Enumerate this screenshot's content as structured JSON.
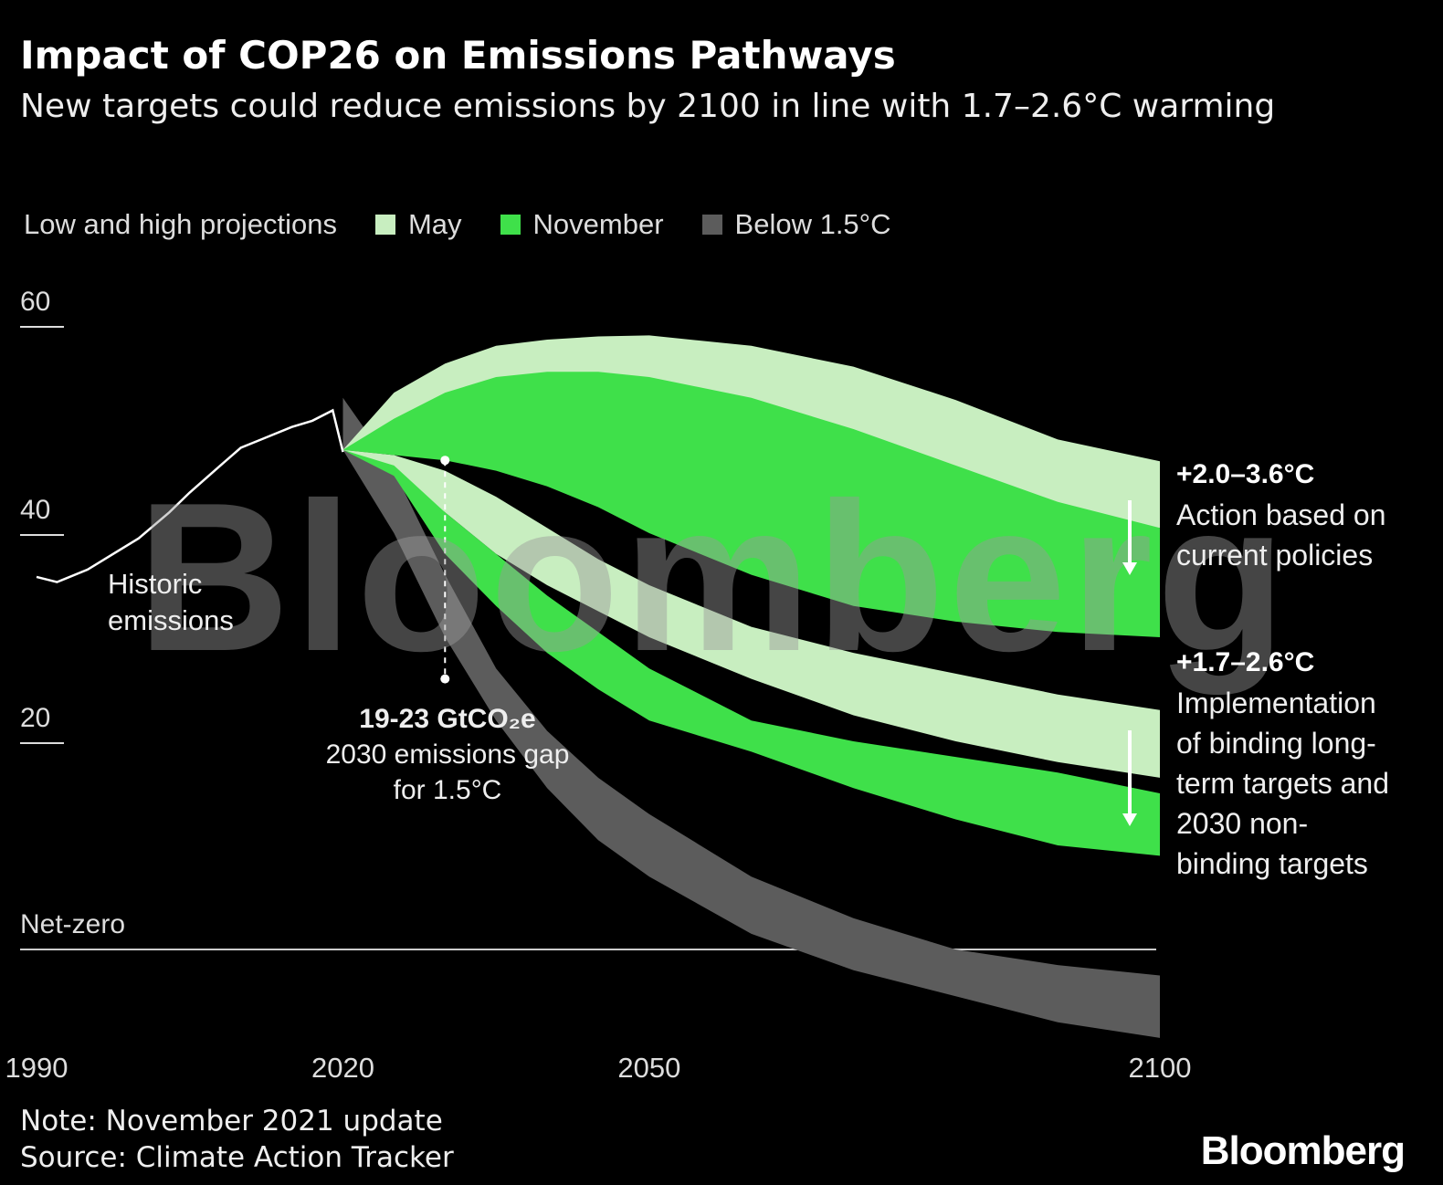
{
  "title": "Impact of COP26 on Emissions Pathways",
  "subtitle": "New targets could reduce emissions by 2100 in line with 1.7–2.6°C warming",
  "note": "Note: November 2021 update",
  "source": "Source: Climate Action Tracker",
  "watermark": "Bloomberg",
  "logo": "Bloomberg",
  "chart_data": {
    "type": "band",
    "legend_title": "Low and high projections",
    "xlim": [
      1990,
      2100
    ],
    "xticks": [
      1990,
      2020,
      2050,
      2100
    ],
    "ylim": [
      -10,
      60
    ],
    "yticks": [
      20,
      40,
      60
    ],
    "zero_line": {
      "value": 0,
      "label": "Net-zero"
    },
    "historic": {
      "name": "Historic emissions",
      "color": "#ffffff",
      "x": [
        1990,
        1992,
        1995,
        2000,
        2003,
        2005,
        2008,
        2010,
        2012,
        2015,
        2017,
        2019,
        2020
      ],
      "values": [
        35.8,
        35.3,
        36.5,
        39.5,
        42,
        43.9,
        46.5,
        48.2,
        49,
        50.2,
        50.8,
        51.8,
        47.8
      ]
    },
    "x": [
      2020,
      2025,
      2030,
      2035,
      2040,
      2045,
      2050,
      2060,
      2070,
      2080,
      2090,
      2100
    ],
    "series": [
      {
        "name": "May",
        "color": "#c8eec0",
        "bands": [
          {
            "high": [
              48,
              53.5,
              56.3,
              58,
              58.6,
              58.9,
              59,
              58,
              56,
              52.8,
              49,
              46.9
            ],
            "low": [
              48,
              49,
              50,
              50.5,
              50.5,
              50,
              49,
              47,
              45,
              43,
              41.5,
              40.5
            ]
          },
          {
            "high": [
              48,
              47.5,
              46,
              43.5,
              40.5,
              37.5,
              35,
              31,
              28.5,
              26.5,
              24.5,
              23
            ],
            "low": [
              48,
              46,
              42,
              38,
              35,
              32.5,
              30,
              26,
              22.5,
              20,
              18,
              16.5
            ]
          }
        ]
      },
      {
        "name": "November",
        "color": "#3fe04a",
        "bands": [
          {
            "high": [
              48,
              51,
              53.5,
              55,
              55.5,
              55.5,
              55,
              53,
              50,
              46.5,
              43,
              40.5
            ],
            "low": [
              48,
              47.5,
              47,
              46,
              44.5,
              42.5,
              40,
              36,
              33,
              31.5,
              30.5,
              30
            ]
          },
          {
            "high": [
              48,
              46.5,
              42,
              38,
              34,
              30.5,
              27,
              22,
              20,
              18.5,
              17,
              15
            ],
            "low": [
              48,
              45.5,
              38,
              33,
              28.5,
              25,
              22,
              19,
              15.5,
              12.5,
              10,
              9
            ]
          }
        ]
      },
      {
        "name": "Below 1.5°C",
        "color": "#5c5c5c",
        "bands": [
          {
            "high": [
              53,
              46,
              36,
              27,
              21,
              16.5,
              13,
              7,
              3,
              0,
              -1.5,
              -2.5
            ],
            "low": [
              48,
              40,
              30,
              22,
              15.5,
              10.5,
              7,
              1.5,
              -2,
              -4.5,
              -7,
              -8.5
            ]
          }
        ]
      }
    ],
    "scenarios": [
      {
        "label": "+2.0–3.6°C",
        "description": "Action based on current policies"
      },
      {
        "label": "+1.7–2.6°C",
        "description": "Implementation of binding long-term targets and 2030 non-binding targets"
      }
    ],
    "gap": {
      "x": 2030,
      "from": 47,
      "to": 26,
      "label": "19-23 GtCO₂e",
      "description": "2030 emissions gap for 1.5°C"
    }
  }
}
